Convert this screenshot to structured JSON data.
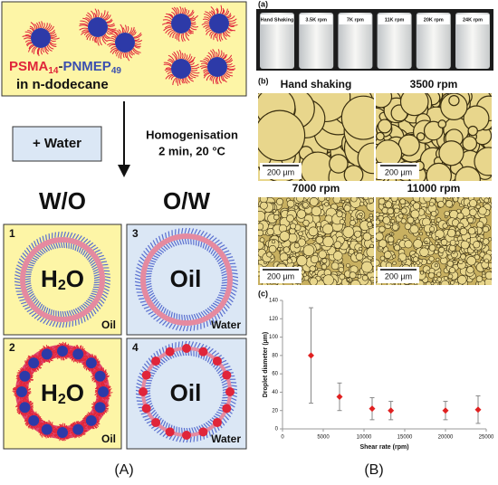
{
  "panel_a": {
    "polymer": {
      "block1": "PSMA",
      "sub1": "14",
      "sep": "-",
      "block2": "PNMEP",
      "sub2": "49"
    },
    "solvent": "in n-dodecane",
    "addition": "+ Water",
    "process": [
      "Homogenisation",
      "2 min, 20 °C"
    ],
    "headings": [
      "W/O",
      "O/W"
    ],
    "boxes": [
      {
        "number": "1",
        "core": [
          "H",
          "2",
          "O"
        ],
        "medium": "Oil"
      },
      {
        "number": "2",
        "core": [
          "H",
          "2",
          "O"
        ],
        "medium": "Oil"
      },
      {
        "number": "3",
        "core": [
          "Oil"
        ],
        "medium": "Water"
      },
      {
        "number": "4",
        "core": [
          "Oil"
        ],
        "medium": "Water"
      }
    ],
    "caption": "(A)"
  },
  "panel_b": {
    "a": {
      "label": "(a)",
      "vials": [
        "Hand Shaking",
        "3.5K rpm",
        "7K rpm",
        "11K rpm",
        "20K rpm",
        "24K rpm"
      ]
    },
    "b": {
      "label": "(b)",
      "images": [
        {
          "title": "Hand shaking",
          "scale": "200 µm"
        },
        {
          "title": "3500 rpm",
          "scale": "200 µm"
        },
        {
          "title": "7000 rpm",
          "scale": "200 µm"
        },
        {
          "title": "11000 rpm",
          "scale": "200 µm"
        }
      ]
    },
    "caption": "(B)"
  },
  "chart_data": {
    "type": "scatter",
    "label": "(c)",
    "xlabel": "Shear rate (rpm)",
    "ylabel": "Droplet diameter (µm)",
    "xlim": [
      0,
      25000
    ],
    "ylim": [
      0,
      140
    ],
    "xticks": [
      0,
      5000,
      10000,
      15000,
      20000,
      25000
    ],
    "yticks": [
      0,
      20,
      40,
      60,
      80,
      100,
      120,
      140
    ],
    "series": [
      {
        "color": "#e02020",
        "x": [
          3500,
          7000,
          11000,
          13300,
          20000,
          24000
        ],
        "values": [
          80,
          35,
          22,
          20,
          20,
          21
        ],
        "errors": [
          52,
          15,
          12,
          10,
          10,
          15
        ]
      }
    ]
  }
}
